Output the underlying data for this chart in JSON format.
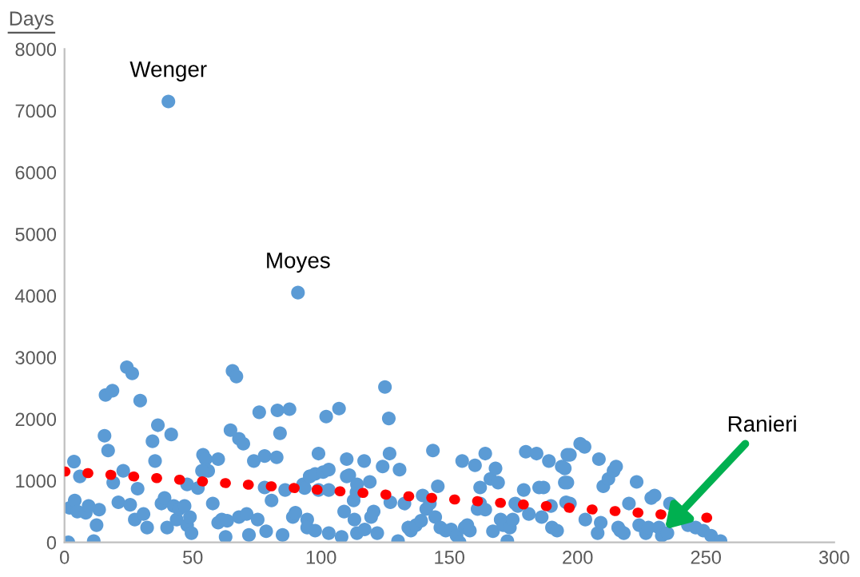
{
  "chart_data": {
    "type": "scatter",
    "ylabel": "Days",
    "xlim": [
      0,
      300
    ],
    "ylim": [
      0,
      8000
    ],
    "xticks": [
      0,
      50,
      100,
      150,
      200,
      250,
      300
    ],
    "yticks": [
      0,
      1000,
      2000,
      3000,
      4000,
      5000,
      6000,
      7000,
      8000
    ],
    "grid": false,
    "marker": "circle",
    "annotations": [
      {
        "text": "Wenger",
        "x": 40.5,
        "y": 7150
      },
      {
        "text": "Moyes",
        "x": 91,
        "y": 4050
      },
      {
        "text": "Ranieri",
        "x": 234,
        "y": 210
      }
    ],
    "series": [
      {
        "color": "#5b9bd5",
        "x": [
          1.5,
          3.7,
          6,
          2,
          4,
          5,
          8.3,
          11.4,
          12.5,
          13.5,
          9.4,
          15.6,
          17,
          16,
          18.7,
          19,
          21,
          22.9,
          24.3,
          26.4,
          25.6,
          27.4,
          28.5,
          29.5,
          30.8,
          32.2,
          34.3,
          35.3,
          36.4,
          37.8,
          39,
          40,
          41.6,
          42.6,
          43.7,
          44.7,
          46.8,
          47.8,
          48.9,
          49.5,
          47.8,
          52,
          54,
          55,
          56,
          53.6,
          57.8,
          59.9,
          59.9,
          61.3,
          63.4,
          62.8,
          65.5,
          67,
          64.7,
          68,
          69.7,
          68,
          71,
          71.9,
          73.8,
          75.3,
          75.9,
          78,
          78.6,
          78,
          80.7,
          83,
          87.7,
          84,
          82.7,
          86,
          85,
          89,
          90,
          93,
          94.6,
          95.6,
          94.6,
          97.7,
          103,
          108,
          93.6,
          99,
          103,
          95.6,
          97.7,
          100.8,
          103,
          99,
          102,
          107,
          110,
          110,
          111,
          112.7,
          113.8,
          114,
          116.8,
          109,
          113,
          114,
          117,
          119,
          120.5,
          119.5,
          121.9,
          124,
          124.9,
          126.4,
          126.7,
          127,
          130,
          130.6,
          132.5,
          134,
          135,
          137,
          139,
          139.6,
          141,
          142.4,
          143.6,
          144.5,
          145.5,
          146.5,
          148.6,
          150.7,
          152.8,
          154,
          155,
          156,
          157,
          158,
          160,
          161,
          162,
          162,
          164,
          164,
          166,
          167,
          168,
          169,
          170,
          171,
          172.6,
          173.6,
          174.7,
          175.7,
          176.7,
          179,
          179.8,
          181,
          184,
          185,
          186,
          186.7,
          188.8,
          189.6,
          190,
          192,
          193.8,
          195,
          195.5,
          196,
          197,
          195,
          196,
          197,
          201,
          202.7,
          208.3,
          210,
          212,
          214,
          215,
          203,
          207.8,
          209,
          215.8,
          218,
          223,
          220,
          224,
          226.6,
          228.7,
          230,
          231.7,
          232.8,
          236,
          243,
          246,
          249,
          252,
          255.7,
          216.6,
          227.6,
          235,
          40.5,
          91
        ],
        "values": [
          0,
          1310,
          1070,
          560,
          680,
          500,
          480,
          20,
          280,
          530,
          590,
          1730,
          1490,
          2390,
          2460,
          970,
          650,
          1160,
          2840,
          2740,
          610,
          370,
          870,
          2300,
          460,
          240,
          1640,
          1320,
          1900,
          630,
          720,
          240,
          1750,
          590,
          370,
          540,
          590,
          280,
          410,
          150,
          940,
          880,
          1420,
          1350,
          1160,
          1160,
          630,
          1350,
          320,
          370,
          350,
          90,
          2780,
          2690,
          1820,
          1680,
          1600,
          410,
          460,
          120,
          1320,
          370,
          2110,
          1400,
          180,
          890,
          680,
          2140,
          2160,
          1770,
          1380,
          850,
          120,
          410,
          480,
          940,
          370,
          1070,
          240,
          190,
          150,
          90,
          880,
          850,
          850,
          1070,
          1110,
          1140,
          1180,
          1440,
          2040,
          2170,
          1070,
          1350,
          1090,
          680,
          810,
          940,
          1320,
          500,
          370,
          150,
          210,
          980,
          500,
          410,
          150,
          1230,
          2520,
          2010,
          1440,
          650,
          20,
          1180,
          630,
          240,
          190,
          280,
          350,
          760,
          540,
          630,
          1490,
          410,
          910,
          240,
          190,
          210,
          110,
          0,
          1320,
          240,
          280,
          190,
          1250,
          540,
          630,
          890,
          1440,
          530,
          1030,
          180,
          1200,
          970,
          370,
          280,
          20,
          240,
          370,
          630,
          590,
          850,
          1470,
          460,
          1440,
          890,
          410,
          890,
          1320,
          590,
          240,
          190,
          1230,
          970,
          650,
          1420,
          1420,
          1200,
          970,
          630,
          1600,
          1550,
          1350,
          910,
          1030,
          1160,
          1230,
          370,
          150,
          320,
          240,
          150,
          980,
          630,
          280,
          150,
          720,
          760,
          240,
          110,
          630,
          280,
          240,
          190,
          110,
          20,
          190,
          240,
          150,
          7150,
          4050
        ]
      },
      {
        "type": "line",
        "color": "#ff0000",
        "line_style": "dotted",
        "marker": "none",
        "x": [
          0,
          254
        ],
        "values": [
          1150,
          390
        ]
      }
    ]
  }
}
